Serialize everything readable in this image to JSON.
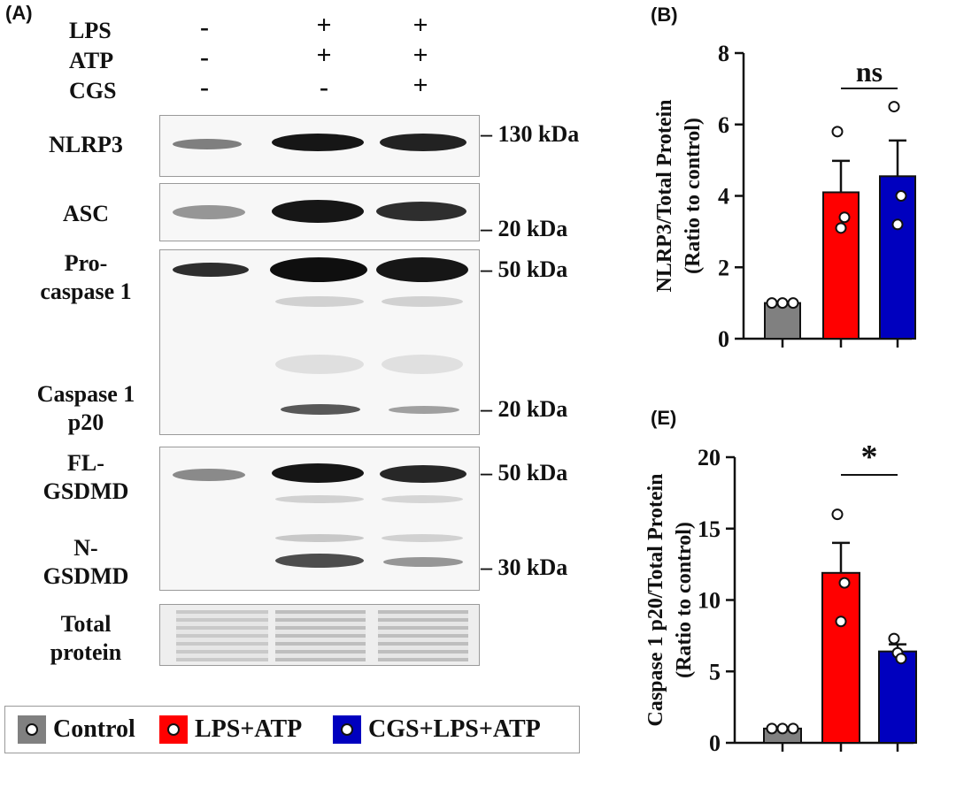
{
  "panel_A": {
    "label": "(A)",
    "conditions": [
      {
        "name": "LPS",
        "signs": [
          "-",
          "+",
          "+"
        ]
      },
      {
        "name": "ATP",
        "signs": [
          "-",
          "+",
          "+"
        ]
      },
      {
        "name": "CGS",
        "signs": [
          "-",
          "-",
          "+"
        ]
      }
    ],
    "rows": {
      "nlrp3": "NLRP3",
      "asc": "ASC",
      "procasp_1": "Pro-",
      "procasp_2": "caspase 1",
      "casp_1": "Caspase 1",
      "casp_2": "p20",
      "fl_1": "FL-",
      "fl_2": "GSDMD",
      "n_1": "N-",
      "n_2": "GSDMD",
      "tp_1": "Total",
      "tp_2": "protein"
    },
    "markers": [
      "130 kDa",
      "20 kDa",
      "50 kDa",
      "20 kDa",
      "50 kDa",
      "30 kDa"
    ]
  },
  "legend": {
    "items": [
      {
        "label": "Control",
        "color": "#808080"
      },
      {
        "label": "LPS+ATP",
        "color": "#ff0000"
      },
      {
        "label": "CGS+LPS+ATP",
        "color": "#0000bf"
      }
    ]
  },
  "chart_data": [
    {
      "panel": "(B)",
      "type": "bar",
      "categories": [
        "Control",
        "LPS+ATP",
        "CGS+LPS+ATP"
      ],
      "values": [
        1.0,
        4.1,
        4.55
      ],
      "errors": [
        0.0,
        0.88,
        1.0
      ],
      "points": [
        [
          1.0,
          1.0,
          1.0
        ],
        [
          5.8,
          3.1,
          3.4
        ],
        [
          6.5,
          3.2,
          4.0
        ]
      ],
      "colors": [
        "#808080",
        "#ff0000",
        "#0000bf"
      ],
      "ylabel_1": "NLRP3/Total Protein",
      "ylabel_2": "(Ratio to control)",
      "ylim": [
        0,
        8
      ],
      "yticks": [
        0,
        2,
        4,
        6,
        8
      ],
      "significance": {
        "between": [
          1,
          2
        ],
        "label": "ns"
      }
    },
    {
      "panel": "(E)",
      "type": "bar",
      "categories": [
        "Control",
        "LPS+ATP",
        "CGS+LPS+ATP"
      ],
      "values": [
        1.0,
        11.9,
        6.4
      ],
      "errors": [
        0.0,
        2.1,
        0.5
      ],
      "points": [
        [
          1.0,
          1.0,
          1.0
        ],
        [
          16.0,
          8.5,
          11.2
        ],
        [
          7.3,
          6.3,
          5.9
        ]
      ],
      "colors": [
        "#808080",
        "#ff0000",
        "#0000bf"
      ],
      "ylabel_1": "Caspase 1 p20/Total Protein",
      "ylabel_2": "(Ratio to control)",
      "ylim": [
        0,
        20
      ],
      "yticks": [
        0,
        5,
        10,
        15,
        20
      ],
      "significance": {
        "between": [
          1,
          2
        ],
        "label": "*"
      }
    }
  ]
}
